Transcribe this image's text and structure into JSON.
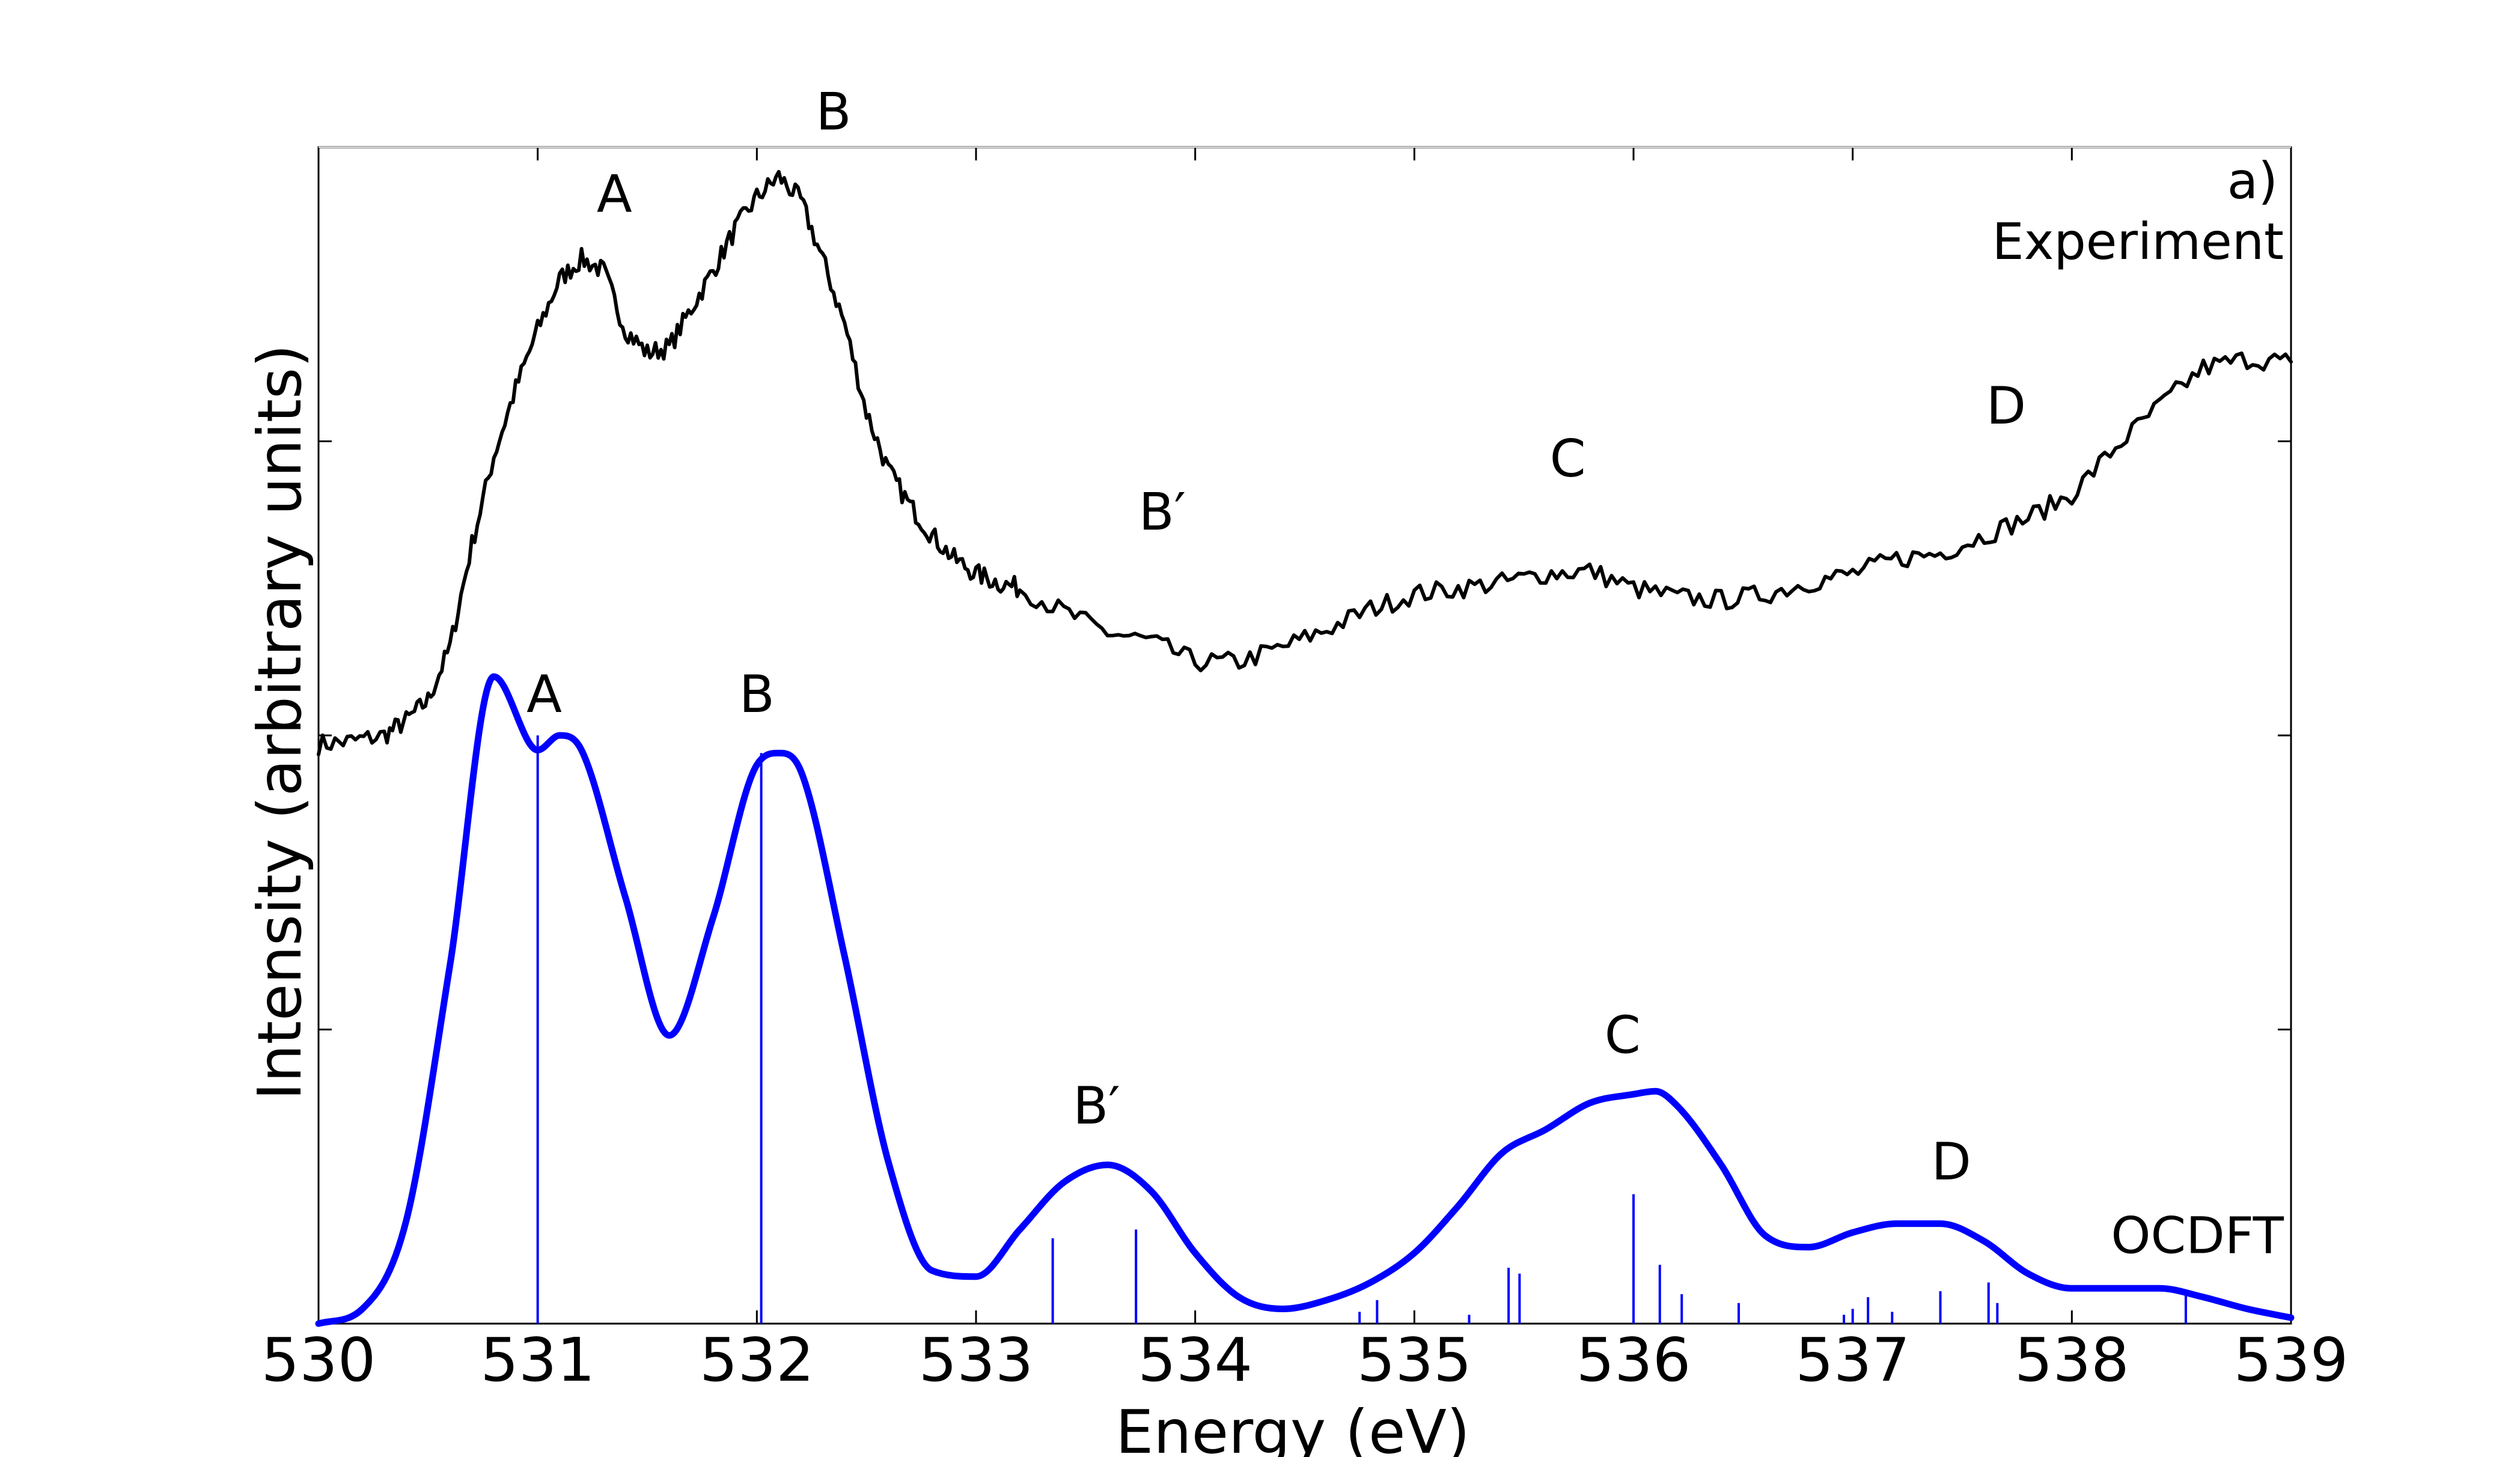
{
  "chart_data": {
    "type": "line",
    "panel_label": "a)",
    "xlabel": "Energy (eV)",
    "ylabel": "Intensity (arbitrary units)",
    "xlim": [
      530,
      539
    ],
    "ylim": [
      0,
      4
    ],
    "x_ticks": [
      "530",
      "531",
      "532",
      "533",
      "534",
      "535",
      "536",
      "537",
      "538",
      "539"
    ],
    "y_ticks_labeled": false,
    "grid": false,
    "colors": {
      "experiment": "#000000",
      "ocdft": "#0000ff"
    },
    "series": [
      {
        "name": "Experiment",
        "style": "noisy line",
        "x": [
          530.0,
          530.15,
          530.3,
          530.4,
          530.5,
          530.6,
          530.7,
          530.8,
          530.9,
          531.0,
          531.1,
          531.2,
          531.3,
          531.4,
          531.5,
          531.6,
          531.7,
          531.8,
          531.9,
          532.0,
          532.1,
          532.2,
          532.3,
          532.4,
          532.5,
          532.6,
          532.7,
          532.8,
          532.9,
          533.0,
          533.1,
          533.2,
          533.4,
          533.6,
          533.8,
          534.0,
          534.2,
          534.4,
          534.6,
          534.8,
          535.0,
          535.2,
          535.4,
          535.6,
          535.8,
          536.0,
          536.2,
          536.4,
          536.6,
          536.8,
          537.0,
          537.2,
          537.4,
          537.6,
          537.8,
          538.0,
          538.2,
          538.4,
          538.6,
          538.8,
          539.0
        ],
        "y": [
          1.97,
          1.98,
          2.0,
          2.05,
          2.12,
          2.3,
          2.65,
          2.95,
          3.18,
          3.38,
          3.55,
          3.62,
          3.58,
          3.38,
          3.3,
          3.32,
          3.45,
          3.58,
          3.72,
          3.83,
          3.9,
          3.82,
          3.62,
          3.4,
          3.1,
          2.9,
          2.78,
          2.68,
          2.6,
          2.55,
          2.52,
          2.5,
          2.42,
          2.35,
          2.32,
          2.25,
          2.25,
          2.3,
          2.36,
          2.43,
          2.48,
          2.5,
          2.52,
          2.55,
          2.56,
          2.5,
          2.47,
          2.46,
          2.48,
          2.52,
          2.55,
          2.6,
          2.62,
          2.68,
          2.74,
          2.82,
          2.98,
          3.12,
          3.25,
          3.28,
          3.27
        ]
      },
      {
        "name": "OCDFT",
        "style": "smooth line",
        "x": [
          530.0,
          530.2,
          530.4,
          530.6,
          530.8,
          531.0,
          531.1,
          531.2,
          531.4,
          531.6,
          531.8,
          532.0,
          532.1,
          532.2,
          532.4,
          532.6,
          532.8,
          533.0,
          533.2,
          533.4,
          533.6,
          533.8,
          534.0,
          534.2,
          534.4,
          534.6,
          534.8,
          535.0,
          535.2,
          535.4,
          535.6,
          535.8,
          536.0,
          536.1,
          536.2,
          536.4,
          536.6,
          536.8,
          537.0,
          537.2,
          537.4,
          537.6,
          537.8,
          538.0,
          538.2,
          538.4,
          538.6,
          538.8,
          539.0
        ],
        "y": [
          0.0,
          0.05,
          0.35,
          1.22,
          2.2,
          1.95,
          2.0,
          1.95,
          1.45,
          0.98,
          1.38,
          1.9,
          1.94,
          1.88,
          1.25,
          0.55,
          0.18,
          0.16,
          0.32,
          0.48,
          0.54,
          0.45,
          0.24,
          0.09,
          0.05,
          0.08,
          0.14,
          0.24,
          0.4,
          0.58,
          0.66,
          0.75,
          0.78,
          0.79,
          0.74,
          0.54,
          0.3,
          0.26,
          0.31,
          0.34,
          0.34,
          0.28,
          0.17,
          0.12,
          0.12,
          0.12,
          0.09,
          0.05,
          0.02
        ]
      }
    ],
    "sticks": {
      "name": "OCDFT transitions",
      "x": [
        531.0,
        532.02,
        533.35,
        533.73,
        534.75,
        534.83,
        535.25,
        535.43,
        535.48,
        536.0,
        536.12,
        536.22,
        536.48,
        536.96,
        537.0,
        537.07,
        537.18,
        537.4,
        537.62,
        537.66,
        538.52
      ],
      "height": [
        2.0,
        1.94,
        0.29,
        0.32,
        0.04,
        0.08,
        0.03,
        0.19,
        0.17,
        0.44,
        0.2,
        0.1,
        0.07,
        0.03,
        0.05,
        0.09,
        0.04,
        0.11,
        0.14,
        0.07,
        0.11
      ]
    },
    "annotations": {
      "experiment": [
        {
          "label": "A",
          "x": 531.35,
          "y": 3.78
        },
        {
          "label": "B",
          "x": 532.35,
          "y": 4.06
        },
        {
          "label": "B′",
          "x": 533.85,
          "y": 2.7
        },
        {
          "label": "C",
          "x": 535.7,
          "y": 2.88
        },
        {
          "label": "D",
          "x": 537.7,
          "y": 3.06
        }
      ],
      "ocdft": [
        {
          "label": "A",
          "x": 531.03,
          "y": 2.08
        },
        {
          "label": "B",
          "x": 532.0,
          "y": 2.08
        },
        {
          "label": "B′",
          "x": 533.55,
          "y": 0.68
        },
        {
          "label": "C",
          "x": 535.95,
          "y": 0.92
        },
        {
          "label": "D",
          "x": 537.45,
          "y": 0.49
        }
      ],
      "series_names": [
        {
          "label": "Experiment",
          "x": 539.0,
          "y": 3.62,
          "anchor": "end"
        },
        {
          "label": "OCDFT",
          "x": 539.0,
          "y": 0.24,
          "anchor": "end"
        }
      ]
    }
  }
}
